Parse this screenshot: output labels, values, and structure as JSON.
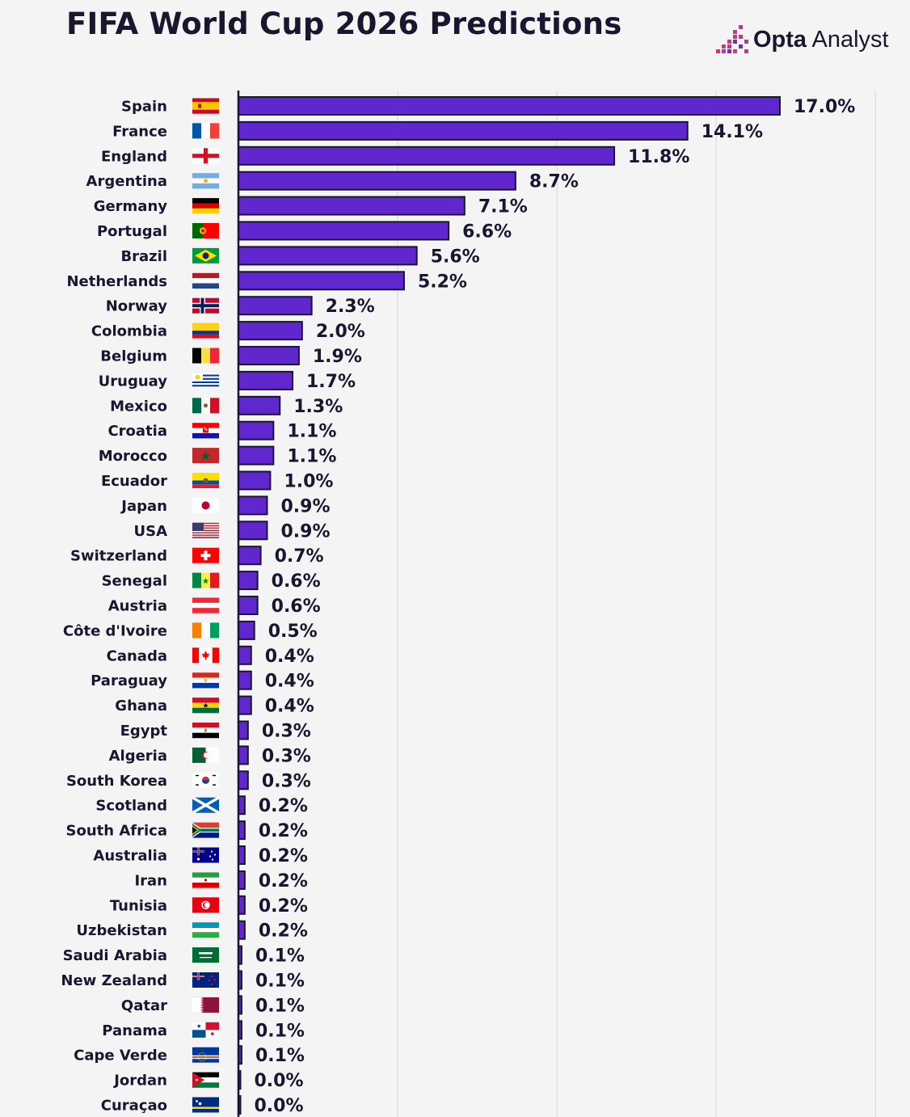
{
  "header": {
    "title": "FIFA World Cup 2026 Predictions",
    "brand_bold": "Opta",
    "brand_rest": " Analyst"
  },
  "colors": {
    "bar": "#5f27cd",
    "bar_outline": "#1c1530",
    "grid": "#dedede",
    "background": "#f4f4f4"
  },
  "chart_data": {
    "type": "bar",
    "orientation": "horizontal",
    "title": "FIFA World Cup 2026 Predictions",
    "xlabel": "",
    "ylabel": "",
    "unit": "%",
    "xlim": [
      0,
      20
    ],
    "grid": true,
    "gridlines_at": [
      5,
      10,
      15,
      20
    ],
    "categories": [
      "Spain",
      "France",
      "England",
      "Argentina",
      "Germany",
      "Portugal",
      "Brazil",
      "Netherlands",
      "Norway",
      "Colombia",
      "Belgium",
      "Uruguay",
      "Mexico",
      "Croatia",
      "Morocco",
      "Ecuador",
      "Japan",
      "USA",
      "Switzerland",
      "Senegal",
      "Austria",
      "Côte d'Ivoire",
      "Canada",
      "Paraguay",
      "Ghana",
      "Egypt",
      "Algeria",
      "South Korea",
      "Scotland",
      "South Africa",
      "Australia",
      "Iran",
      "Tunisia",
      "Uzbekistan",
      "Saudi Arabia",
      "New Zealand",
      "Qatar",
      "Panama",
      "Cape Verde",
      "Jordan",
      "Curaçao"
    ],
    "values": [
      17.0,
      14.1,
      11.8,
      8.7,
      7.1,
      6.6,
      5.6,
      5.2,
      2.3,
      2.0,
      1.9,
      1.7,
      1.3,
      1.1,
      1.1,
      1.0,
      0.9,
      0.9,
      0.7,
      0.6,
      0.6,
      0.5,
      0.4,
      0.4,
      0.4,
      0.3,
      0.3,
      0.3,
      0.2,
      0.2,
      0.2,
      0.2,
      0.2,
      0.2,
      0.1,
      0.1,
      0.1,
      0.1,
      0.1,
      0.0,
      0.0
    ],
    "value_labels": [
      "17.0%",
      "14.1%",
      "11.8%",
      "8.7%",
      "7.1%",
      "6.6%",
      "5.6%",
      "5.2%",
      "2.3%",
      "2.0%",
      "1.9%",
      "1.7%",
      "1.3%",
      "1.1%",
      "1.1%",
      "1.0%",
      "0.9%",
      "0.9%",
      "0.7%",
      "0.6%",
      "0.6%",
      "0.5%",
      "0.4%",
      "0.4%",
      "0.4%",
      "0.3%",
      "0.3%",
      "0.3%",
      "0.2%",
      "0.2%",
      "0.2%",
      "0.2%",
      "0.2%",
      "0.2%",
      "0.1%",
      "0.1%",
      "0.1%",
      "0.1%",
      "0.1%",
      "0.0%",
      "0.0%"
    ],
    "flags": [
      "spain-flag-icon",
      "france-flag-icon",
      "england-flag-icon",
      "argentina-flag-icon",
      "germany-flag-icon",
      "portugal-flag-icon",
      "brazil-flag-icon",
      "netherlands-flag-icon",
      "norway-flag-icon",
      "colombia-flag-icon",
      "belgium-flag-icon",
      "uruguay-flag-icon",
      "mexico-flag-icon",
      "croatia-flag-icon",
      "morocco-flag-icon",
      "ecuador-flag-icon",
      "japan-flag-icon",
      "usa-flag-icon",
      "switzerland-flag-icon",
      "senegal-flag-icon",
      "austria-flag-icon",
      "cote-divoire-flag-icon",
      "canada-flag-icon",
      "paraguay-flag-icon",
      "ghana-flag-icon",
      "egypt-flag-icon",
      "algeria-flag-icon",
      "south-korea-flag-icon",
      "scotland-flag-icon",
      "south-africa-flag-icon",
      "australia-flag-icon",
      "iran-flag-icon",
      "tunisia-flag-icon",
      "uzbekistan-flag-icon",
      "saudi-arabia-flag-icon",
      "new-zealand-flag-icon",
      "qatar-flag-icon",
      "panama-flag-icon",
      "cape-verde-flag-icon",
      "jordan-flag-icon",
      "curacao-flag-icon"
    ]
  }
}
